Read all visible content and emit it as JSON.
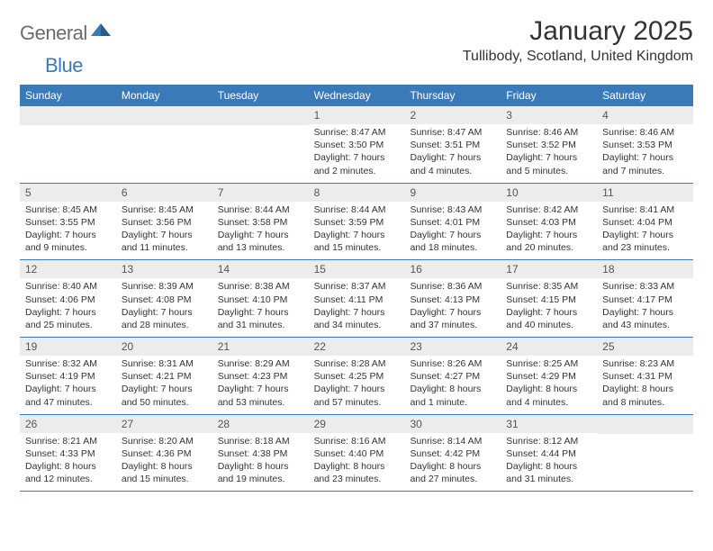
{
  "brand": {
    "part1": "General",
    "part2": "Blue"
  },
  "title": "January 2025",
  "location": "Tullibody, Scotland, United Kingdom",
  "colors": {
    "accent": "#3a7ab8",
    "band": "#ececec",
    "text": "#333333",
    "logo_gray": "#6b6b6b"
  },
  "day_names": [
    "Sunday",
    "Monday",
    "Tuesday",
    "Wednesday",
    "Thursday",
    "Friday",
    "Saturday"
  ],
  "weeks": [
    [
      null,
      null,
      null,
      {
        "n": "1",
        "sr": "Sunrise: 8:47 AM",
        "ss": "Sunset: 3:50 PM",
        "d1": "Daylight: 7 hours",
        "d2": "and 2 minutes."
      },
      {
        "n": "2",
        "sr": "Sunrise: 8:47 AM",
        "ss": "Sunset: 3:51 PM",
        "d1": "Daylight: 7 hours",
        "d2": "and 4 minutes."
      },
      {
        "n": "3",
        "sr": "Sunrise: 8:46 AM",
        "ss": "Sunset: 3:52 PM",
        "d1": "Daylight: 7 hours",
        "d2": "and 5 minutes."
      },
      {
        "n": "4",
        "sr": "Sunrise: 8:46 AM",
        "ss": "Sunset: 3:53 PM",
        "d1": "Daylight: 7 hours",
        "d2": "and 7 minutes."
      }
    ],
    [
      {
        "n": "5",
        "sr": "Sunrise: 8:45 AM",
        "ss": "Sunset: 3:55 PM",
        "d1": "Daylight: 7 hours",
        "d2": "and 9 minutes."
      },
      {
        "n": "6",
        "sr": "Sunrise: 8:45 AM",
        "ss": "Sunset: 3:56 PM",
        "d1": "Daylight: 7 hours",
        "d2": "and 11 minutes."
      },
      {
        "n": "7",
        "sr": "Sunrise: 8:44 AM",
        "ss": "Sunset: 3:58 PM",
        "d1": "Daylight: 7 hours",
        "d2": "and 13 minutes."
      },
      {
        "n": "8",
        "sr": "Sunrise: 8:44 AM",
        "ss": "Sunset: 3:59 PM",
        "d1": "Daylight: 7 hours",
        "d2": "and 15 minutes."
      },
      {
        "n": "9",
        "sr": "Sunrise: 8:43 AM",
        "ss": "Sunset: 4:01 PM",
        "d1": "Daylight: 7 hours",
        "d2": "and 18 minutes."
      },
      {
        "n": "10",
        "sr": "Sunrise: 8:42 AM",
        "ss": "Sunset: 4:03 PM",
        "d1": "Daylight: 7 hours",
        "d2": "and 20 minutes."
      },
      {
        "n": "11",
        "sr": "Sunrise: 8:41 AM",
        "ss": "Sunset: 4:04 PM",
        "d1": "Daylight: 7 hours",
        "d2": "and 23 minutes."
      }
    ],
    [
      {
        "n": "12",
        "sr": "Sunrise: 8:40 AM",
        "ss": "Sunset: 4:06 PM",
        "d1": "Daylight: 7 hours",
        "d2": "and 25 minutes."
      },
      {
        "n": "13",
        "sr": "Sunrise: 8:39 AM",
        "ss": "Sunset: 4:08 PM",
        "d1": "Daylight: 7 hours",
        "d2": "and 28 minutes."
      },
      {
        "n": "14",
        "sr": "Sunrise: 8:38 AM",
        "ss": "Sunset: 4:10 PM",
        "d1": "Daylight: 7 hours",
        "d2": "and 31 minutes."
      },
      {
        "n": "15",
        "sr": "Sunrise: 8:37 AM",
        "ss": "Sunset: 4:11 PM",
        "d1": "Daylight: 7 hours",
        "d2": "and 34 minutes."
      },
      {
        "n": "16",
        "sr": "Sunrise: 8:36 AM",
        "ss": "Sunset: 4:13 PM",
        "d1": "Daylight: 7 hours",
        "d2": "and 37 minutes."
      },
      {
        "n": "17",
        "sr": "Sunrise: 8:35 AM",
        "ss": "Sunset: 4:15 PM",
        "d1": "Daylight: 7 hours",
        "d2": "and 40 minutes."
      },
      {
        "n": "18",
        "sr": "Sunrise: 8:33 AM",
        "ss": "Sunset: 4:17 PM",
        "d1": "Daylight: 7 hours",
        "d2": "and 43 minutes."
      }
    ],
    [
      {
        "n": "19",
        "sr": "Sunrise: 8:32 AM",
        "ss": "Sunset: 4:19 PM",
        "d1": "Daylight: 7 hours",
        "d2": "and 47 minutes."
      },
      {
        "n": "20",
        "sr": "Sunrise: 8:31 AM",
        "ss": "Sunset: 4:21 PM",
        "d1": "Daylight: 7 hours",
        "d2": "and 50 minutes."
      },
      {
        "n": "21",
        "sr": "Sunrise: 8:29 AM",
        "ss": "Sunset: 4:23 PM",
        "d1": "Daylight: 7 hours",
        "d2": "and 53 minutes."
      },
      {
        "n": "22",
        "sr": "Sunrise: 8:28 AM",
        "ss": "Sunset: 4:25 PM",
        "d1": "Daylight: 7 hours",
        "d2": "and 57 minutes."
      },
      {
        "n": "23",
        "sr": "Sunrise: 8:26 AM",
        "ss": "Sunset: 4:27 PM",
        "d1": "Daylight: 8 hours",
        "d2": "and 1 minute."
      },
      {
        "n": "24",
        "sr": "Sunrise: 8:25 AM",
        "ss": "Sunset: 4:29 PM",
        "d1": "Daylight: 8 hours",
        "d2": "and 4 minutes."
      },
      {
        "n": "25",
        "sr": "Sunrise: 8:23 AM",
        "ss": "Sunset: 4:31 PM",
        "d1": "Daylight: 8 hours",
        "d2": "and 8 minutes."
      }
    ],
    [
      {
        "n": "26",
        "sr": "Sunrise: 8:21 AM",
        "ss": "Sunset: 4:33 PM",
        "d1": "Daylight: 8 hours",
        "d2": "and 12 minutes."
      },
      {
        "n": "27",
        "sr": "Sunrise: 8:20 AM",
        "ss": "Sunset: 4:36 PM",
        "d1": "Daylight: 8 hours",
        "d2": "and 15 minutes."
      },
      {
        "n": "28",
        "sr": "Sunrise: 8:18 AM",
        "ss": "Sunset: 4:38 PM",
        "d1": "Daylight: 8 hours",
        "d2": "and 19 minutes."
      },
      {
        "n": "29",
        "sr": "Sunrise: 8:16 AM",
        "ss": "Sunset: 4:40 PM",
        "d1": "Daylight: 8 hours",
        "d2": "and 23 minutes."
      },
      {
        "n": "30",
        "sr": "Sunrise: 8:14 AM",
        "ss": "Sunset: 4:42 PM",
        "d1": "Daylight: 8 hours",
        "d2": "and 27 minutes."
      },
      {
        "n": "31",
        "sr": "Sunrise: 8:12 AM",
        "ss": "Sunset: 4:44 PM",
        "d1": "Daylight: 8 hours",
        "d2": "and 31 minutes."
      },
      null
    ]
  ]
}
